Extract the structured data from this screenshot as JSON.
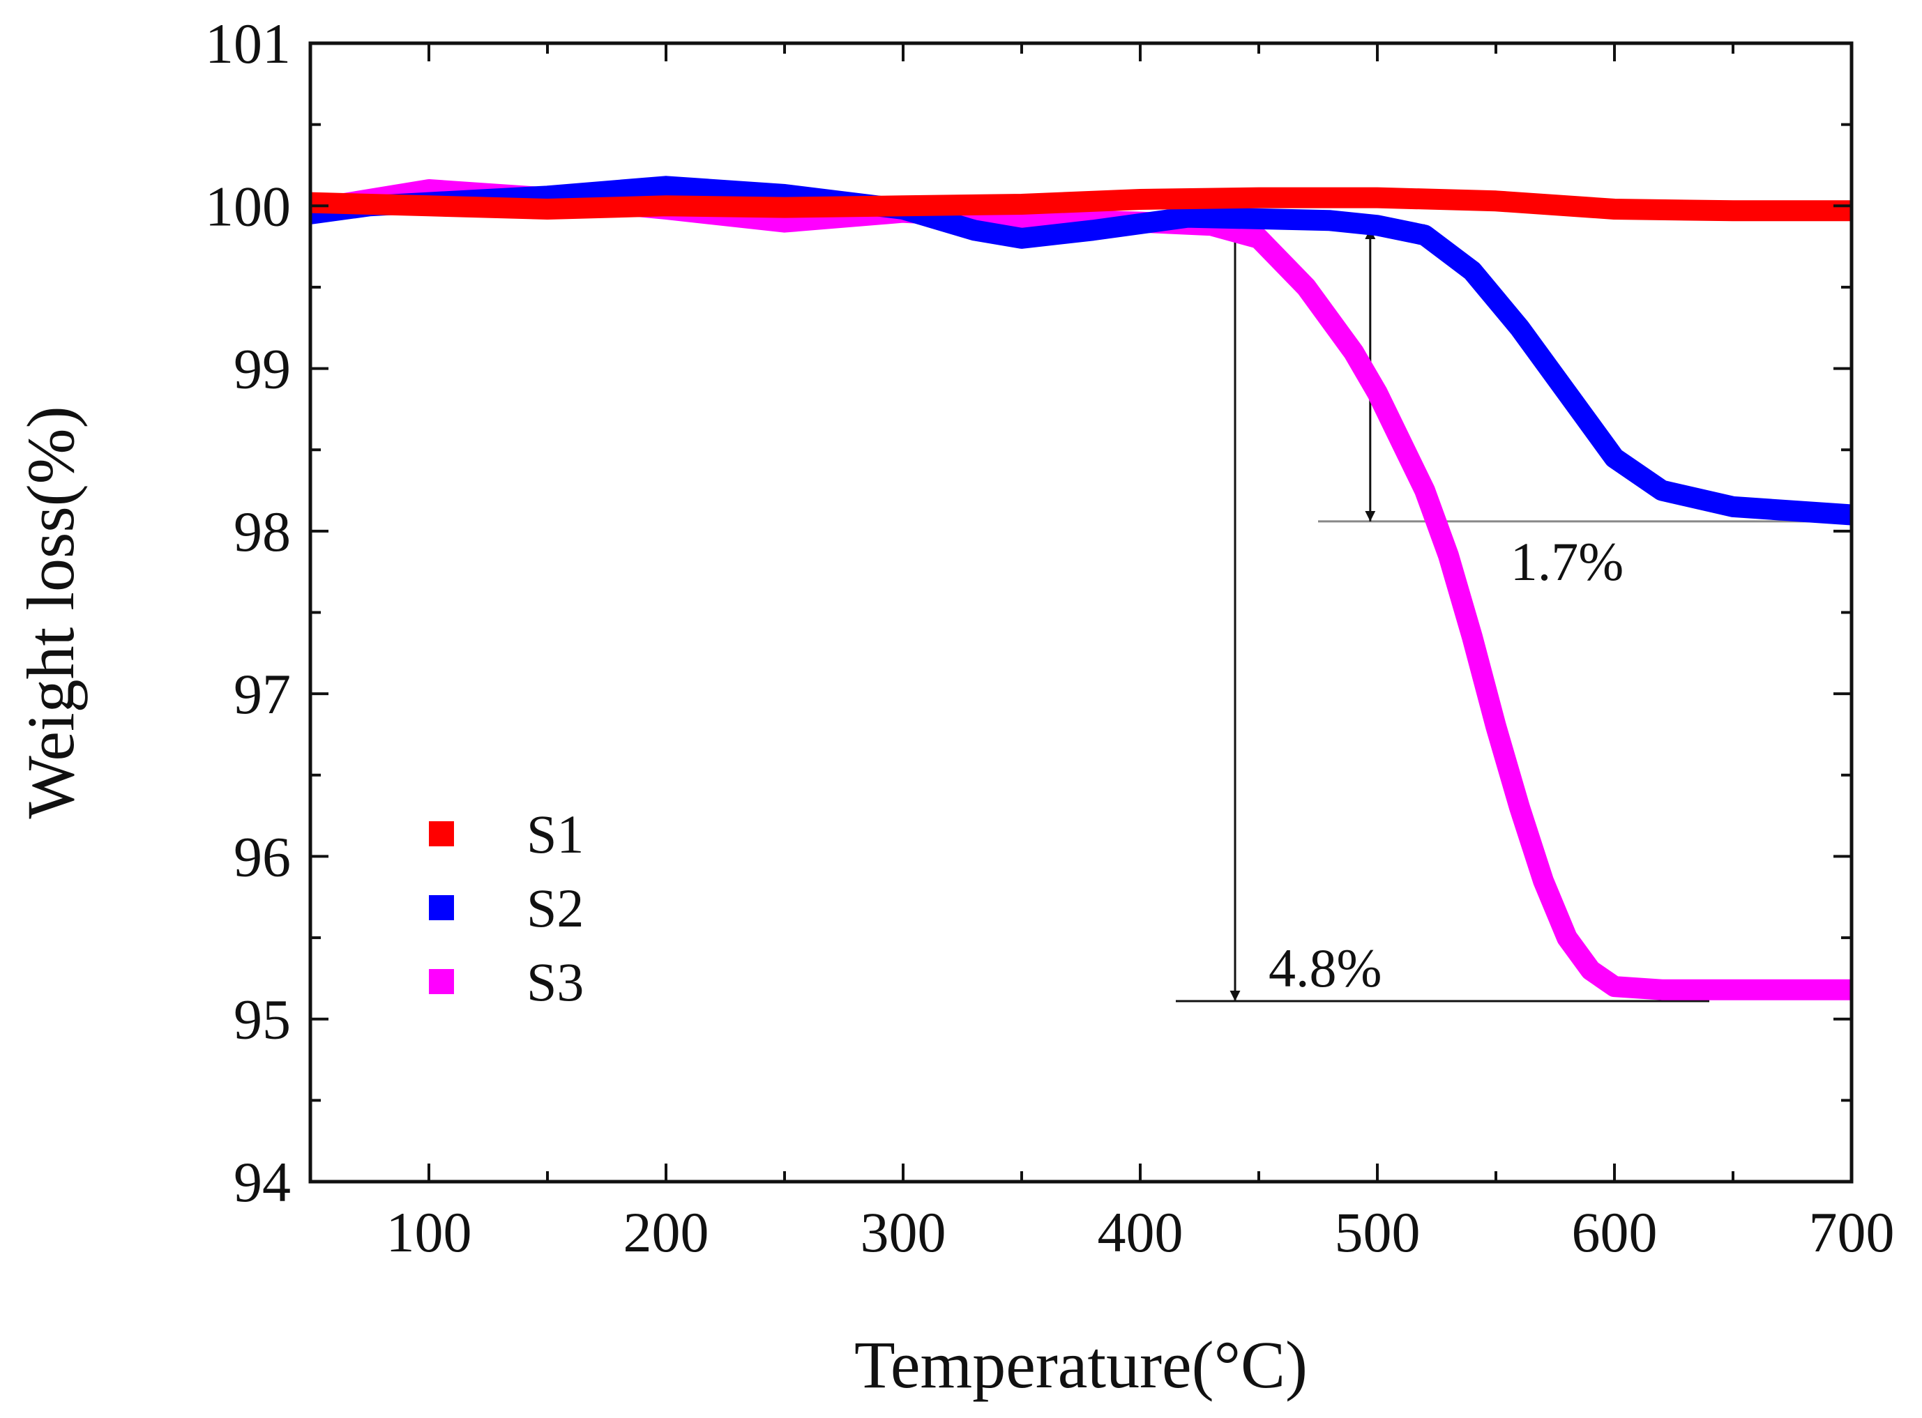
{
  "chart_data": {
    "type": "line",
    "title": "",
    "xlabel": "Temperature(°C)",
    "ylabel": "Weight loss(%)",
    "xlim": [
      50,
      700
    ],
    "ylim": [
      94,
      101
    ],
    "xticks": [
      100,
      200,
      300,
      400,
      500,
      600,
      700
    ],
    "yticks": [
      94,
      95,
      96,
      97,
      98,
      99,
      100,
      101
    ],
    "grid": false,
    "legend_position": "bottom-left",
    "series": [
      {
        "name": "S1",
        "color": "#ff0000",
        "x": [
          50,
          100,
          150,
          200,
          250,
          300,
          350,
          400,
          450,
          500,
          550,
          600,
          650,
          700
        ],
        "y": [
          100.02,
          100.0,
          99.98,
          100.0,
          99.99,
          100.0,
          100.01,
          100.04,
          100.05,
          100.05,
          100.03,
          99.98,
          99.97,
          99.97
        ]
      },
      {
        "name": "S2",
        "color": "#0000ff",
        "x": [
          50,
          75,
          100,
          150,
          200,
          250,
          300,
          330,
          350,
          380,
          420,
          450,
          480,
          500,
          520,
          540,
          560,
          580,
          600,
          620,
          650,
          700
        ],
        "y": [
          99.95,
          100.0,
          100.02,
          100.06,
          100.12,
          100.07,
          99.98,
          99.85,
          99.8,
          99.85,
          99.93,
          99.92,
          99.91,
          99.88,
          99.82,
          99.6,
          99.25,
          98.85,
          98.45,
          98.25,
          98.15,
          98.1
        ]
      },
      {
        "name": "S3",
        "color": "#ff00ff",
        "x": [
          50,
          100,
          150,
          200,
          250,
          300,
          350,
          400,
          430,
          450,
          470,
          490,
          500,
          510,
          520,
          530,
          540,
          550,
          560,
          570,
          580,
          590,
          600,
          620,
          650,
          700
        ],
        "y": [
          99.98,
          100.1,
          100.05,
          99.98,
          99.9,
          99.96,
          99.92,
          99.9,
          99.88,
          99.8,
          99.5,
          99.1,
          98.85,
          98.55,
          98.25,
          97.85,
          97.35,
          96.8,
          96.3,
          95.85,
          95.5,
          95.3,
          95.2,
          95.18,
          95.18,
          95.18
        ]
      }
    ],
    "annotations": [
      {
        "text": "1.7%",
        "x": 580,
        "y": 97.7
      },
      {
        "text": "4.8%",
        "x": 478,
        "y": 95.2
      }
    ]
  }
}
